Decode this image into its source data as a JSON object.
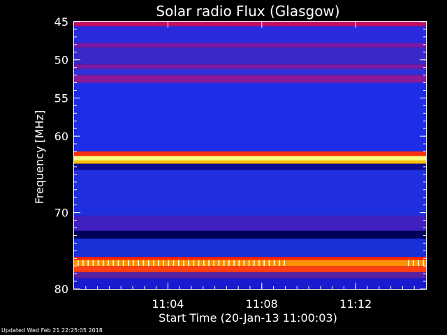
{
  "chart_data": {
    "type": "heatmap",
    "title": "Solar radio Flux (Glasgow)",
    "xlabel": "Start Time (20-Jan-13 11:00:03)",
    "ylabel_prefix": "Frequency ",
    "ylabel_unit": "MHz",
    "x_range_minutes": [
      0,
      15
    ],
    "x_ticks": [
      {
        "minute": 4,
        "label": "11:04"
      },
      {
        "minute": 8,
        "label": "11:08"
      },
      {
        "minute": 12,
        "label": "11:12"
      }
    ],
    "y_range_mhz": [
      45,
      80
    ],
    "y_ticks": [
      {
        "mhz": 45,
        "label": "45"
      },
      {
        "mhz": 50,
        "label": "50"
      },
      {
        "mhz": 55,
        "label": "55"
      },
      {
        "mhz": 60,
        "label": "60"
      },
      {
        "mhz": 70,
        "label": "70"
      },
      {
        "mhz": 80,
        "label": "80"
      }
    ],
    "y_minor_tick_step_mhz": 1,
    "bands": [
      {
        "from_mhz": 45.0,
        "to_mhz": 45.6,
        "color": "#c01060"
      },
      {
        "from_mhz": 45.6,
        "to_mhz": 47.8,
        "color": "#2a2adf"
      },
      {
        "from_mhz": 47.8,
        "to_mhz": 48.4,
        "color": "#7a1aa8"
      },
      {
        "from_mhz": 48.4,
        "to_mhz": 50.6,
        "color": "#3a28c8"
      },
      {
        "from_mhz": 50.6,
        "to_mhz": 51.2,
        "color": "#7a1aa8"
      },
      {
        "from_mhz": 51.2,
        "to_mhz": 52.0,
        "color": "#3030d8"
      },
      {
        "from_mhz": 52.0,
        "to_mhz": 53.0,
        "color": "#8a1a9a"
      },
      {
        "from_mhz": 53.0,
        "to_mhz": 62.0,
        "color": "#1e2ee8"
      },
      {
        "from_mhz": 62.0,
        "to_mhz": 62.6,
        "color": "#ff3010"
      },
      {
        "from_mhz": 62.6,
        "to_mhz": 63.2,
        "color": "#ffff80"
      },
      {
        "from_mhz": 63.2,
        "to_mhz": 63.6,
        "color": "#ffc000"
      },
      {
        "from_mhz": 63.6,
        "to_mhz": 64.4,
        "color": "#0a0a90"
      },
      {
        "from_mhz": 64.4,
        "to_mhz": 70.4,
        "color": "#2030e0"
      },
      {
        "from_mhz": 70.4,
        "to_mhz": 72.4,
        "color": "#4020c0"
      },
      {
        "from_mhz": 72.4,
        "to_mhz": 73.4,
        "color": "#00005a"
      },
      {
        "from_mhz": 73.4,
        "to_mhz": 75.8,
        "color": "#1830d8"
      },
      {
        "from_mhz": 75.8,
        "to_mhz": 76.2,
        "color": "#ff2000"
      },
      {
        "from_mhz": 76.2,
        "to_mhz": 77.0,
        "color": "#ff9000"
      },
      {
        "from_mhz": 77.0,
        "to_mhz": 77.8,
        "color": "#ff4010"
      },
      {
        "from_mhz": 77.8,
        "to_mhz": 78.6,
        "color": "#5a20a0"
      },
      {
        "from_mhz": 78.6,
        "to_mhz": 80.0,
        "color": "#1a1ad0"
      }
    ],
    "spikes_band_mhz": [
      76.2,
      77.0
    ],
    "spike_color": "#ffffd0",
    "grid": false
  },
  "footer": "Updated Wed Feb 21 22:25:05 2018"
}
